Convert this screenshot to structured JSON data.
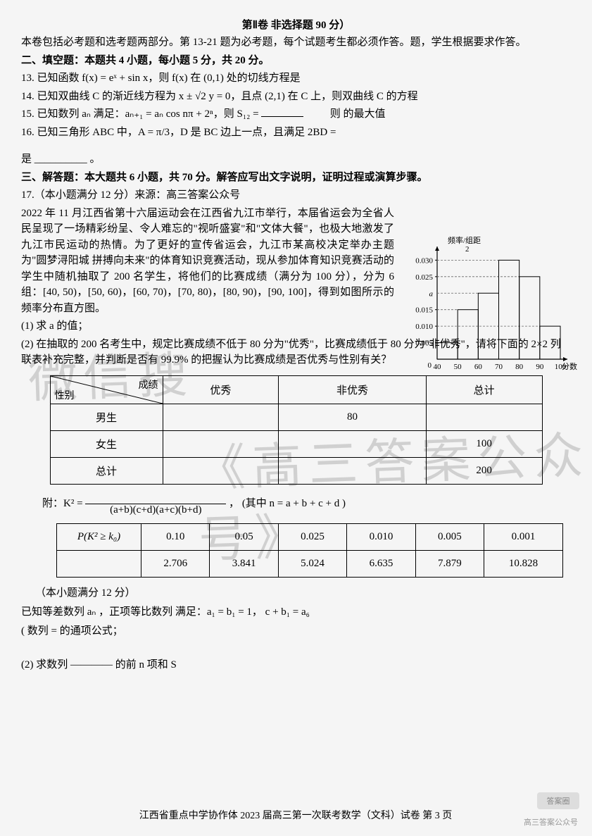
{
  "header": {
    "title": "第Ⅱ卷  非选择题 90 分）",
    "mandatory_note": "本卷包括必考题和选考题两部分。第 13-21 题为必考题，每个试题考生都必须作答。题，学生根据要求作答。"
  },
  "section2": {
    "title": "二、填空题：本题共 4 小题，每小题 5 分，共 20 分。",
    "q13": "13. 已知函数 f(x) = eˣ + sin x，则 f(x) 在 (0,1) 处的切线方程是",
    "q14": "14. 已知双曲线 C 的渐近线方程为 x ± √2 y = 0，且点 (2,1) 在 C 上，则双曲线 C 的方程",
    "q15_a": "15. 已知数列 aₙ 满足：aₙ₊₁ = aₙ cos nπ + 2ⁿ，则 S₁₂ = ",
    "q15_b": "则            的最大值",
    "q16": "16. 已知三角形 ABC 中，A = π/3，D 是 BC 边上一点，且满足 2BD =",
    "q16_tail": "是 __________ 。"
  },
  "section3": {
    "title": "三、解答题：本大题共 6 小题，共 70 分。解答应写出文字说明，证明过程或演算步骤。",
    "q17_points": "17.（本小题满分 12 分）来源：高三答案公众号",
    "q17_text": "2022 年 11 月江西省第十六届运动会在江西省九江市举行，本届省运会为全省人民呈现了一场精彩纷呈、令人难忘的\"视听盛宴\"和\"文体大餐\"，也极大地激发了九江市民运动的热情。为了更好的宣传省运会，九江市某高校决定举办主题为\"圆梦浔阳城  拼搏向未来\"的体育知识竞赛活动，现从参加体育知识竞赛活动的学生中随机抽取了 200 名学生，将他们的比赛成绩（满分为 100 分），分为 6 组：[40, 50)，[50, 60)，[60, 70)，[70, 80)，[80, 90)，[90, 100]，得到如图所示的频率分布直方图。",
    "q17_sub1": "(1) 求 a 的值；",
    "q17_sub2": "(2) 在抽取的 200 名考生中，规定比赛成绩不低于 80 分为\"优秀\"，比赛成绩低于 80 分为\"非优秀\"，请将下面的 2×2 列联表补充完整，并判断是否有 99.9% 的把握认为比赛成绩是否优秀与性别有关？"
  },
  "contingency_table": {
    "corner_top": "成绩",
    "corner_bottom": "性别",
    "columns": [
      "优秀",
      "非优秀",
      "总计"
    ],
    "rows": [
      {
        "label": "男生",
        "cells": [
          "",
          "80",
          ""
        ]
      },
      {
        "label": "女生",
        "cells": [
          "",
          "",
          "100"
        ]
      },
      {
        "label": "总计",
        "cells": [
          "",
          "",
          "200"
        ]
      }
    ]
  },
  "formula_note": "附：K² = ",
  "formula_body": "(其中 n = a + b + c + d )",
  "formula_denom": "(a+b)(c+d)(a+c)(b+d)",
  "pk_table": {
    "header_label": "P(K² ≥ k₀)",
    "row2_label": "",
    "p_values": [
      "0.10",
      "0.05",
      "0.025",
      "0.010",
      "0.005",
      "0.001"
    ],
    "k_values": [
      "2.706",
      "3.841",
      "5.024",
      "6.635",
      "7.879",
      "10.828"
    ]
  },
  "q18": {
    "points": "（本小题满分 12 分）",
    "line1": "已知等差数列  aₙ ，正项等比数列        满足：a₁ = b₁ = 1，            c  + b₁ = a₆",
    "line2": "(       数列      =      的通项公式；",
    "line3": "(2) 求数列 ———— 的前 n 项和 S"
  },
  "chart": {
    "ylabel": "频率/组距",
    "ylabel2": "2",
    "xlabel": "分数",
    "a_label": "a",
    "y_ticks": [
      0.005,
      0.01,
      0.015,
      0.025,
      0.03
    ],
    "x_ticks": [
      40,
      50,
      60,
      70,
      80,
      90,
      100
    ],
    "bars": [
      {
        "x": 40,
        "h": 0.005
      },
      {
        "x": 50,
        "h": 0.015
      },
      {
        "x": 60,
        "h": 0.02
      },
      {
        "x": 70,
        "h": 0.03
      },
      {
        "x": 80,
        "h": 0.025
      },
      {
        "x": 90,
        "h": 0.01
      }
    ],
    "axis_color": "#000",
    "bar_border": "#000",
    "bar_fill": "none",
    "font_size": 11
  },
  "footer": "江西省重点中学协作体 2023 届高三第一次联考数学（文科）试卷    第 3 页",
  "watermarks": {
    "w1": "微信搜",
    "w2": "《高三答案公众号》"
  },
  "badges": {
    "corner": "答案圈",
    "small": "高三答案公众号"
  }
}
